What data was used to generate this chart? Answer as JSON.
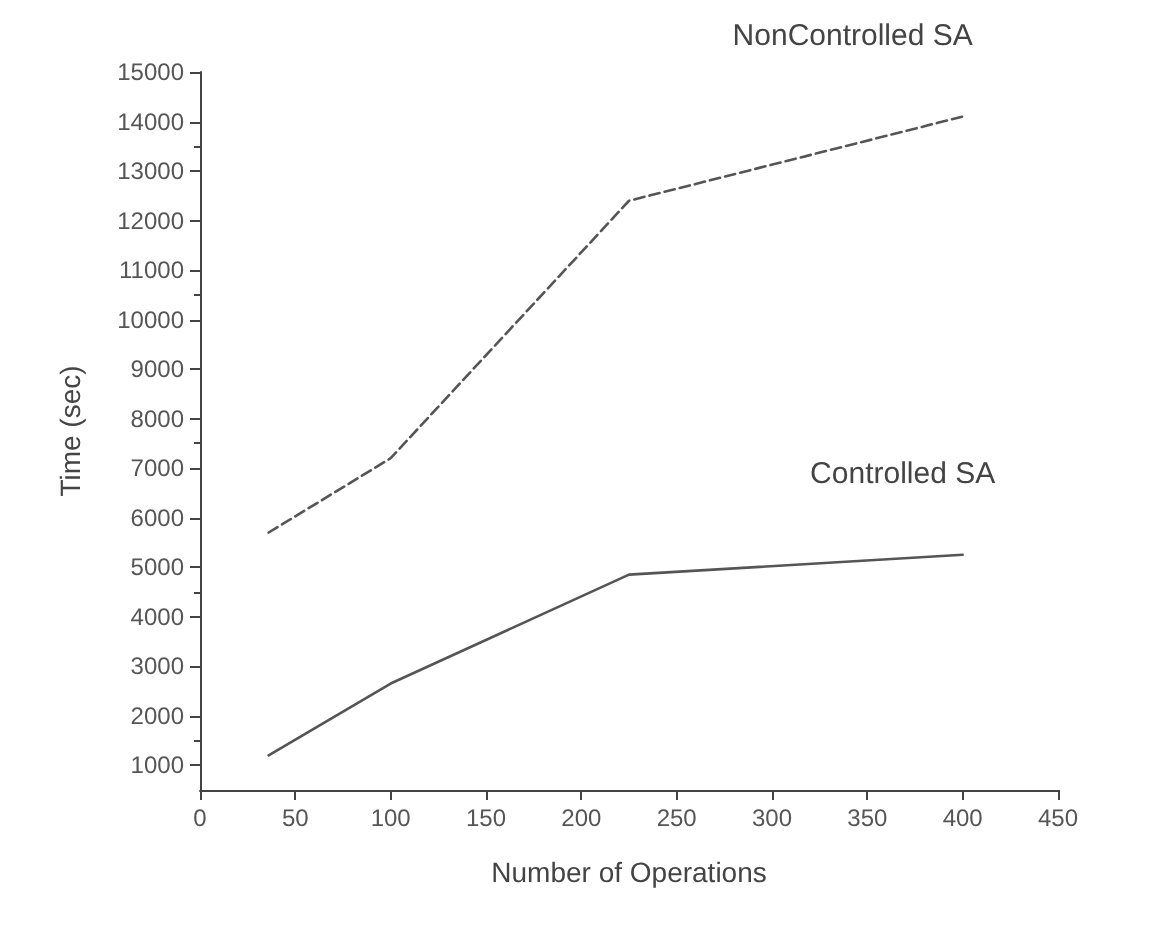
{
  "chart_data": {
    "type": "line",
    "xlabel": "Number of Operations",
    "ylabel": "Time (sec)",
    "x": [
      36,
      100,
      225,
      400
    ],
    "series": [
      {
        "name": "NonControlled SA",
        "color": "#555555",
        "line_style": "dashed",
        "values": [
          5700,
          7200,
          12400,
          14100
        ]
      },
      {
        "name": "Controlled SA",
        "color": "#555555",
        "line_style": "solid",
        "values": [
          1200,
          2650,
          4850,
          5250
        ]
      }
    ],
    "xlim": [
      0,
      450
    ],
    "xticks": [
      0,
      50,
      100,
      150,
      200,
      250,
      300,
      350,
      400,
      450
    ],
    "ylim": [
      500,
      15000
    ],
    "yticks": [
      1000,
      2000,
      3000,
      4000,
      5000,
      6000,
      7000,
      8000,
      9000,
      10000,
      11000,
      12000,
      13000,
      14000,
      15000
    ],
    "grid": false,
    "legend": false,
    "marker": "none"
  }
}
